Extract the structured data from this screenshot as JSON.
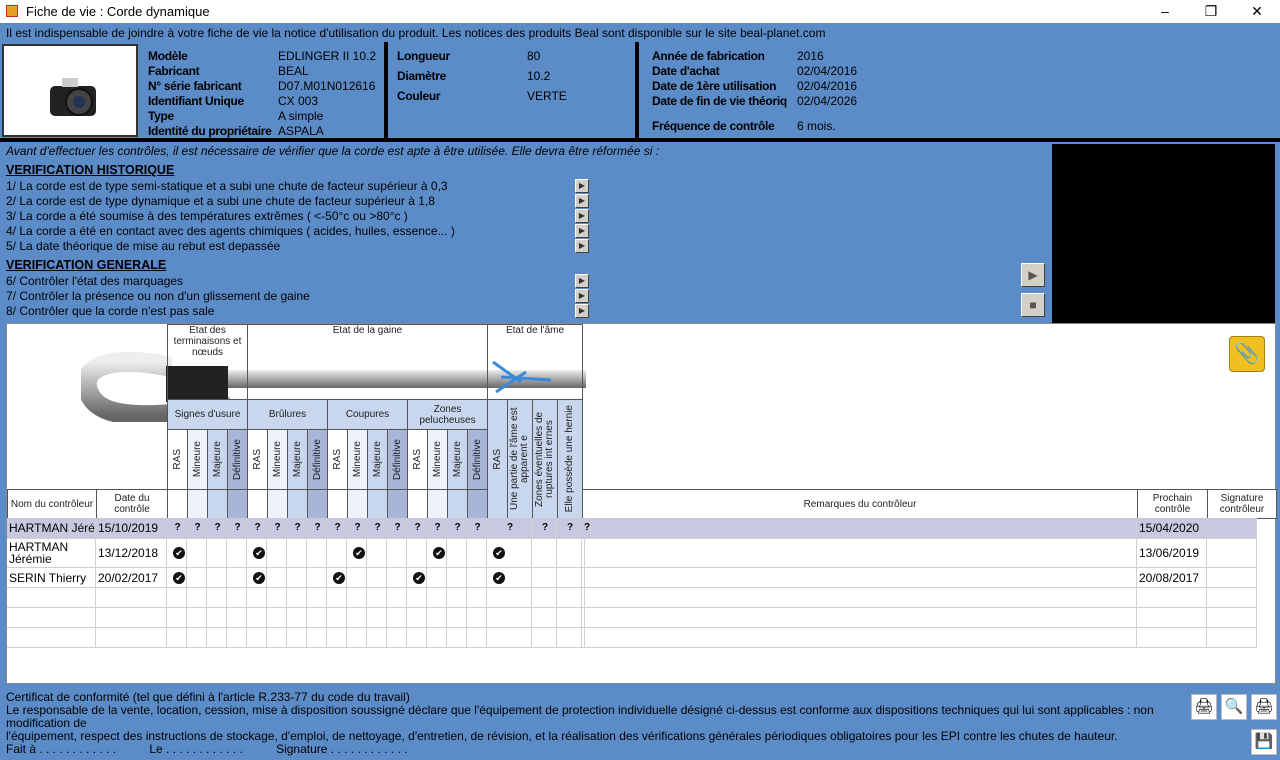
{
  "window": {
    "title": "Fiche de vie : Corde dynamique",
    "minimize": "–",
    "maximize": "❐",
    "close": "✕"
  },
  "notice": "Il est indispensable de joindre à votre fiche de vie la notice d'utilisation du produit. Les notices des produits Beal sont disponible sur le site beal-planet.com",
  "product": [
    {
      "label": "Modèle",
      "value": "EDLINGER II 10.2"
    },
    {
      "label": "Fabricant",
      "value": "BEAL"
    },
    {
      "label": "N° série fabricant",
      "value": "D07.M01N012616"
    },
    {
      "label": "Identifiant Unique",
      "value": "CX 003"
    },
    {
      "label": "Type",
      "value": "A simple"
    },
    {
      "label": "Identité du propriétaire",
      "value": "ASPALA"
    }
  ],
  "specs": [
    {
      "label": "Longueur",
      "value": "80"
    },
    {
      "label": "Diamètre",
      "value": "10.2"
    },
    {
      "label": "Couleur",
      "value": "VERTE"
    }
  ],
  "dates": [
    {
      "label": "Année de fabrication",
      "value": "2016"
    },
    {
      "label": "Date d'achat",
      "value": "02/04/2016"
    },
    {
      "label": "Date de 1ère utilisation",
      "value": "02/04/2016"
    },
    {
      "label": "Date de fin de vie théoriq",
      "value": "02/04/2026"
    }
  ],
  "frequency": {
    "label": "Fréquence de contrôle",
    "value": "6 mois."
  },
  "verification": {
    "intro": "Avant d'effectuer les contrôles, il est nécessaire de vérifier que la corde est apte à être utilisée. Elle devra être réformée si :",
    "historique_title": "VERIFICATION HISTORIQUE",
    "historique": [
      "1/ La corde est de type semi-statique et a subi une chute de facteur supérieur à 0,3",
      "2/ La corde est de type dynamique et a subi une chute de facteur supérieur à 1,8",
      "3/ La corde a été soumise à des températures extrêmes ( <-50°c ou >80°c )",
      "4/ La corde a été en contact avec des agents chimiques ( acides, huiles, essence... )",
      "5/ La date théorique de mise au rebut est depassée"
    ],
    "generale_title": "VERIFICATION GENERALE",
    "generale": [
      "6/ Contrôler l'état des marquages",
      "7/ Contrôler la présence ou non d'un glissement de gaine",
      "8/ Contrôler que la corde n'est pas sale"
    ]
  },
  "grid": {
    "groups_top": [
      "Etat des terminaisons et nœuds",
      "Etat de la gaine",
      "Etat de l'âme"
    ],
    "groups": [
      "Signes d'usure",
      "Brûlures",
      "Coupures",
      "Zones pelucheuses"
    ],
    "levels": [
      "RAS",
      "Mineure",
      "Majeure",
      "Définitive"
    ],
    "ame": [
      "RAS",
      "Une partie de l'âme est apparent e",
      "Zones éventuelles de ruptures int ernes",
      "Elle possède une hernie"
    ],
    "colors": {
      "RAS": "#ffffff",
      "Mineure": "#eef3fb",
      "Majeure": "#c8d6ee",
      "Définitive": "#a8b4d8",
      "selected_row": "#c8c8e0"
    },
    "headers": {
      "name": "Nom du contrôleur",
      "date": "Date du contrôle",
      "remarks": "Remarques du contrôleur",
      "next": "Prochain contrôle",
      "signature": "Signature contrôleur"
    },
    "rows": [
      {
        "name": "HARTMAN Jéré",
        "date": "15/10/2019",
        "marks": "????????????????????",
        "next": "15/04/2020",
        "selected": true
      },
      {
        "name": "HARTMAN Jérémie",
        "date": "13/12/2018",
        "marks": "x___x________x___x___x___",
        "next": "13/06/2019"
      },
      {
        "name": "SERIN Thierry",
        "date": "20/02/2017",
        "marks": "x___x___x___x___x___",
        "next": "20/08/2017"
      },
      {
        "name": "",
        "date": "",
        "marks": "",
        "next": ""
      },
      {
        "name": "",
        "date": "",
        "marks": "",
        "next": ""
      },
      {
        "name": "",
        "date": "",
        "marks": "",
        "next": ""
      }
    ]
  },
  "footer": {
    "title": "Certificat de conformité (tel que défini à l'article R.233-77 du code du travail)",
    "line1": "Le responsable de la vente, location, cession, mise à disposition soussigné déclare que l'équipement de protection individuelle désigné ci-dessus est conforme aux dispositions techniques qui lui sont applicables : non modification de",
    "line2": "l'équipement, respect des instructions de stockage, d'emploi, de nettoyage, d'entretien, de révision, et la réalisation des vérifications générales périodiques obligatoires pour les EPI contre les chutes de hauteur.",
    "line3": "Fait à . . . . . . . . . . . .          Le . . . . . . . . . . . .          Signature . . . . . . . . . . . ."
  }
}
